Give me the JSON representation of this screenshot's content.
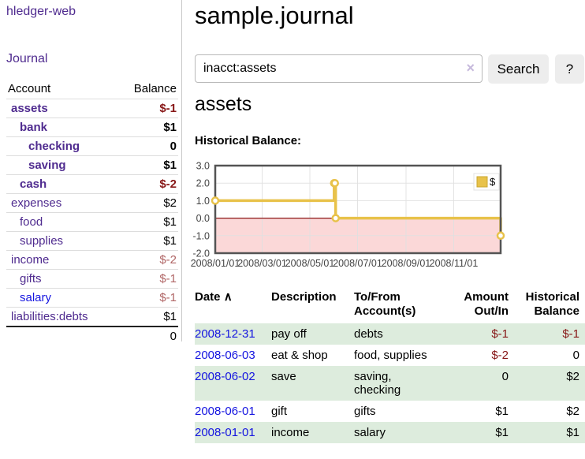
{
  "app": {
    "title": "hledger-web"
  },
  "sidebar": {
    "journal_label": "Journal",
    "accounts": {
      "header_account": "Account",
      "header_balance": "Balance",
      "rows": [
        {
          "name": "assets",
          "level": 1,
          "bold": true,
          "balance": "$-1",
          "balance_style": "neg"
        },
        {
          "name": "bank",
          "level": 2,
          "bold": true,
          "balance": "$1",
          "balance_style": ""
        },
        {
          "name": "checking",
          "level": 3,
          "bold": true,
          "balance": "0",
          "balance_style": ""
        },
        {
          "name": "saving",
          "level": 3,
          "bold": true,
          "balance": "$1",
          "balance_style": ""
        },
        {
          "name": "cash",
          "level": 2,
          "bold": true,
          "balance": "$-2",
          "balance_style": "neg"
        },
        {
          "name": "expenses",
          "level": 1,
          "bold": false,
          "balance": "$2",
          "balance_style": ""
        },
        {
          "name": "food",
          "level": 2,
          "bold": false,
          "balance": "$1",
          "balance_style": ""
        },
        {
          "name": "supplies",
          "level": 2,
          "bold": false,
          "balance": "$1",
          "balance_style": ""
        },
        {
          "name": "income",
          "level": 1,
          "bold": false,
          "balance": "$-2",
          "balance_style": "neg-light"
        },
        {
          "name": "gifts",
          "level": 2,
          "bold": false,
          "balance": "$-1",
          "balance_style": "neg-light"
        },
        {
          "name": "salary",
          "level": 2,
          "bold": false,
          "link_color": "blue",
          "balance": "$-1",
          "balance_style": "neg-light"
        },
        {
          "name": "liabilities:debts",
          "level": 1,
          "bold": false,
          "balance": "$1",
          "balance_style": ""
        }
      ],
      "total": "0"
    }
  },
  "main": {
    "title": "sample.journal",
    "search": {
      "value": "inacct:assets",
      "clear_icon": "×",
      "button_label": "Search",
      "help_label": "?"
    },
    "account_heading": "assets"
  },
  "chart_data": {
    "type": "line",
    "title": "Historical Balance:",
    "series": [
      {
        "name": "$",
        "color": "#e8c24a",
        "steps": true,
        "points": [
          [
            "2008-01-01",
            1
          ],
          [
            "2008-06-01",
            2
          ],
          [
            "2008-06-02",
            2
          ],
          [
            "2008-06-03",
            0
          ],
          [
            "2008-12-31",
            -1
          ]
        ]
      }
    ],
    "xlim": [
      "2008-01-01",
      "2008-12-31"
    ],
    "ylim": [
      -2,
      3
    ],
    "yticks": [
      3,
      2,
      1,
      0,
      -1,
      -2
    ],
    "ytick_labels": [
      "3.0",
      "2.0",
      "1.0",
      "0.0",
      "-1.0",
      "-2.0"
    ],
    "xtick_dates": [
      "2008-01-01",
      "2008-03-01",
      "2008-05-01",
      "2008-07-01",
      "2008-09-01",
      "2008-11-01"
    ],
    "xtick_labels": [
      "2008/01/01",
      "2008/03/01",
      "2008/05/01",
      "2008/07/01",
      "2008/09/01",
      "2008/11/01"
    ],
    "legend_position": "top-right",
    "grid": true,
    "negative_region_color": "#fbd8d8",
    "zero_line_color": "#8b1616",
    "border_color": "#545454",
    "grid_color": "#e0e0e0",
    "axis_label_color": "#444444"
  },
  "register": {
    "headers": [
      "Date",
      "Description",
      "To/From Account(s)",
      "Amount Out/In",
      "Historical Balance"
    ],
    "sort_icon": "∧",
    "rows": [
      {
        "date": "2008-12-31",
        "description": "pay off",
        "accounts": "debts",
        "amount": "$-1",
        "amount_neg": true,
        "balance": "$-1",
        "balance_neg": true
      },
      {
        "date": "2008-06-03",
        "description": "eat & shop",
        "accounts": "food, supplies",
        "amount": "$-2",
        "amount_neg": true,
        "balance": "0",
        "balance_neg": false
      },
      {
        "date": "2008-06-02",
        "description": "save",
        "accounts": "saving, checking",
        "amount": "0",
        "amount_neg": false,
        "balance": "$2",
        "balance_neg": false
      },
      {
        "date": "2008-06-01",
        "description": "gift",
        "accounts": "gifts",
        "amount": "$1",
        "amount_neg": false,
        "balance": "$2",
        "balance_neg": false
      },
      {
        "date": "2008-01-01",
        "description": "income",
        "accounts": "salary",
        "amount": "$1",
        "amount_neg": false,
        "balance": "$1",
        "balance_neg": false
      }
    ]
  },
  "colors": {
    "link_purple": "#4f2b8f",
    "link_blue": "#1414e0",
    "negative": "#871717",
    "negative_muted": "#b06565",
    "row_stripe_green": "#ddecdd",
    "series_yellow": "#e8c24a",
    "negative_region_pink": "#fbd8d8",
    "zero_line": "#8b1616",
    "chart_border": "#545454"
  }
}
